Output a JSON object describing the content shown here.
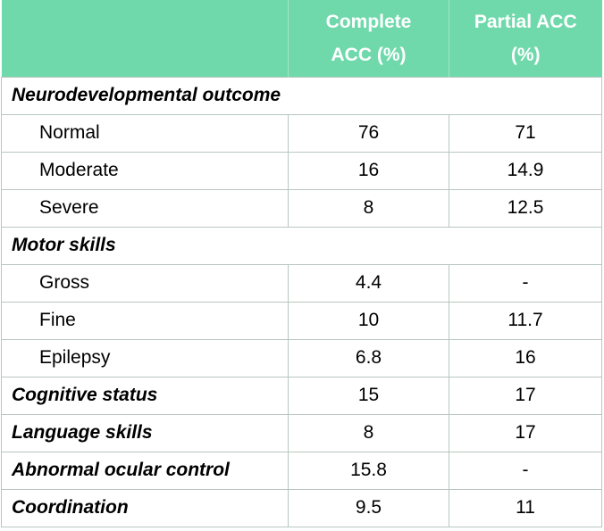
{
  "header": {
    "col1": "",
    "col2_line1": "Complete",
    "col2_line2": "ACC (%)",
    "col3_line1": "Partial ACC",
    "col3_line2": "(%)"
  },
  "rows": [
    {
      "label": "Neurodevelopmental outcome"
    },
    {
      "label": "Normal",
      "complete": "76",
      "partial": "71"
    },
    {
      "label": "Moderate",
      "complete": "16",
      "partial": "14.9"
    },
    {
      "label": "Severe",
      "complete": "8",
      "partial": "12.5"
    },
    {
      "label": "Motor skills"
    },
    {
      "label": "Gross",
      "complete": "4.4",
      "partial": "-"
    },
    {
      "label": "Fine",
      "complete": "10",
      "partial": "11.7"
    },
    {
      "label": "Epilepsy",
      "complete": "6.8",
      "partial": "16"
    },
    {
      "label": "Cognitive status",
      "complete": "15",
      "partial": "17"
    },
    {
      "label": "Language skills",
      "complete": "8",
      "partial": "17"
    },
    {
      "label": "Abnormal ocular control",
      "complete": "15.8",
      "partial": "-"
    },
    {
      "label": "Coordination",
      "complete": "9.5",
      "partial": "11"
    }
  ],
  "colors": {
    "header_bg": "#70d9ac",
    "header_text": "#ffffff",
    "grid": "#b9c6bf"
  }
}
